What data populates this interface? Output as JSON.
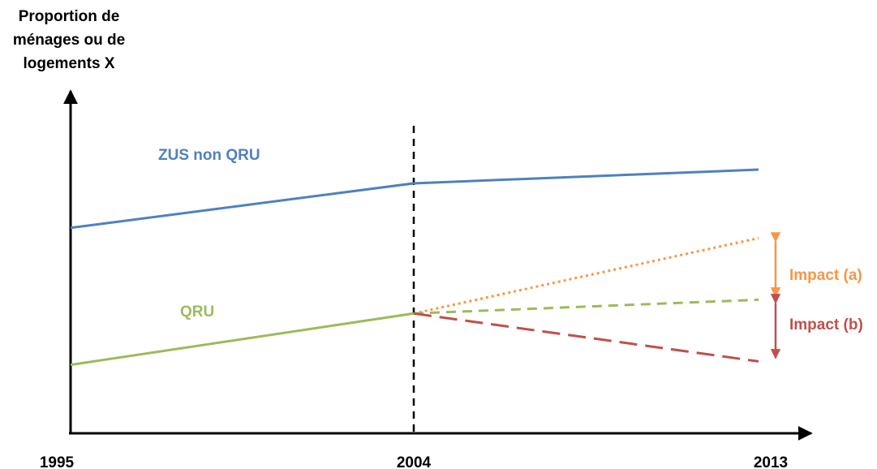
{
  "chart_data": {
    "type": "line",
    "ylabel_lines": [
      "Proportion de",
      "ménages ou de",
      "logements X"
    ],
    "xlabel": "",
    "x_ticks": [
      "1995",
      "2004",
      "2013"
    ],
    "series": [
      {
        "name": "ZUS non QRU",
        "style": "solid",
        "color": "#4F81BD",
        "points": [
          {
            "x": "1995",
            "y": 0.6
          },
          {
            "x": "2004",
            "y": 0.73
          },
          {
            "x": "2013",
            "y": 0.77
          }
        ]
      },
      {
        "name": "QRU",
        "style": "solid",
        "color": "#9BBB59",
        "points": [
          {
            "x": "1995",
            "y": 0.2
          },
          {
            "x": "2004",
            "y": 0.35
          }
        ]
      },
      {
        "style": "dotted",
        "color": "#F79646",
        "points": [
          {
            "x": "2004",
            "y": 0.35
          },
          {
            "x": "2013",
            "y": 0.57
          }
        ]
      },
      {
        "style": "dashed",
        "color": "#9BBB59",
        "points": [
          {
            "x": "2004",
            "y": 0.35
          },
          {
            "x": "2013",
            "y": 0.39
          }
        ]
      },
      {
        "style": "long-dashed",
        "color": "#C0504D",
        "points": [
          {
            "x": "2004",
            "y": 0.35
          },
          {
            "x": "2013",
            "y": 0.21
          }
        ]
      }
    ],
    "reference_line": {
      "x": "2004",
      "style": "dashed",
      "color": "#000000"
    },
    "annotations": [
      {
        "text": "Impact (a)",
        "color": "#F79646",
        "from_y": 0.57,
        "to_y": 0.39
      },
      {
        "text": "Impact (b)",
        "color": "#C0504D",
        "from_y": 0.39,
        "to_y": 0.21
      }
    ],
    "ylim": [
      0,
      1
    ],
    "y_ticks_shown": false,
    "grid": false,
    "legend": "none"
  }
}
